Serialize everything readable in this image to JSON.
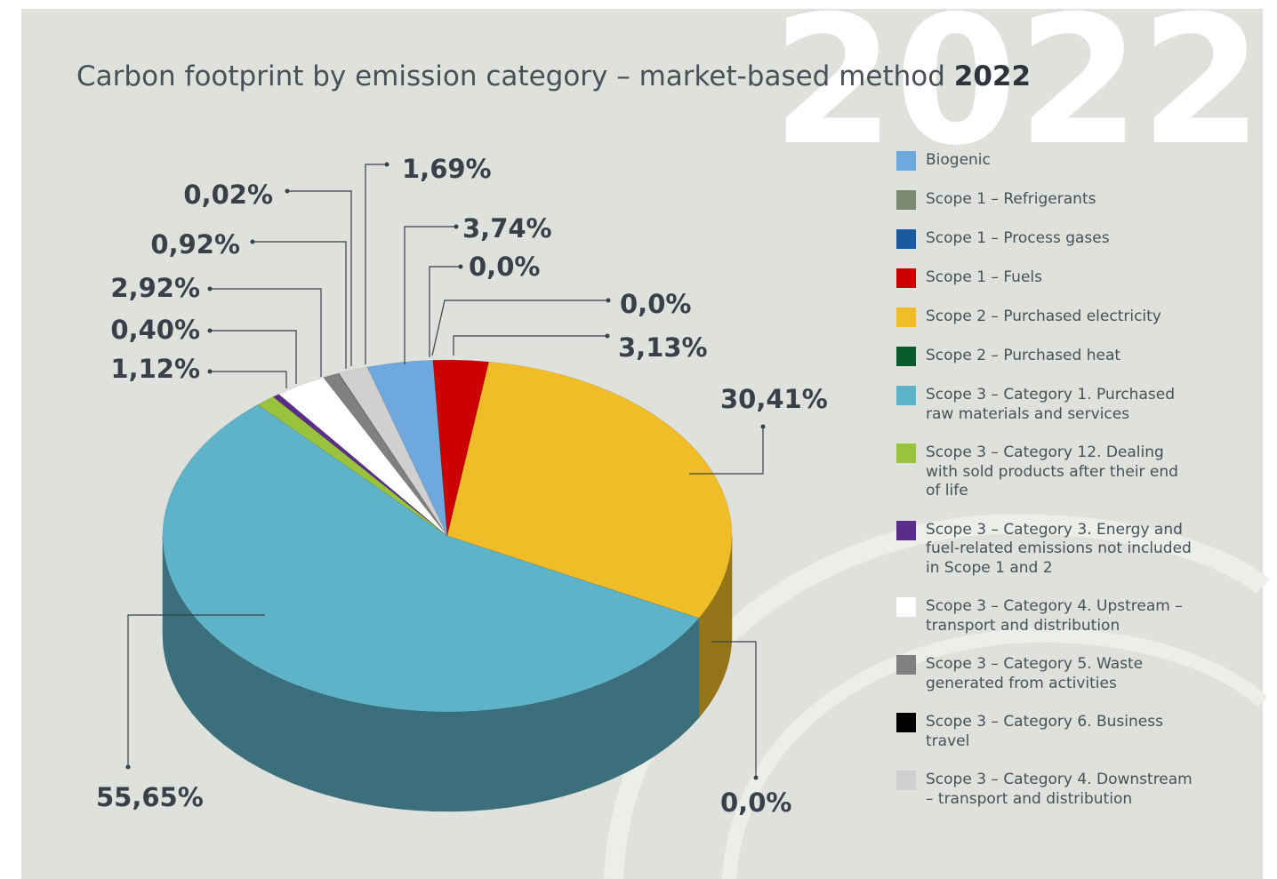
{
  "chart_data": {
    "type": "pie",
    "title": "Carbon footprint by emission category – market-based method",
    "title_year": "2022",
    "categories": [
      "Biogenic",
      "Scope 1 – Refrigerants",
      "Scope 1 – Process gases",
      "Scope 1 – Fuels",
      "Scope 2 – Purchased electricity",
      "Scope 2 – Purchased heat",
      "Scope 3 – Category 1. Purchased raw materials and services",
      "Scope 3 – Category 12. Dealing with sold products after their end of life",
      "Scope 3 – Category 3. Energy and fuel-related emissions not included in Scope 1 and 2",
      "Scope 3 – Category 4. Upstream – transport and distribution",
      "Scope 3 – Category 5. Waste generated from activities",
      "Scope 3 – Category 6. Business travel",
      "Scope 3 – Category 4. Downstream – transport and distribution"
    ],
    "values": [
      3.74,
      0.0,
      0.0,
      3.13,
      30.41,
      0.0,
      55.65,
      1.12,
      0.4,
      2.92,
      0.92,
      0.02,
      1.69
    ],
    "value_labels": [
      "3,74%",
      "0,0%",
      "0,0%",
      "3,13%",
      "30,41%",
      "0,0%",
      "55,65%",
      "1,12%",
      "0,40%",
      "2,92%",
      "0,92%",
      "0,02%",
      "1,69%"
    ],
    "colors": [
      "#6fa8dc",
      "#7b8a6e",
      "#1a5a9e",
      "#cc0000",
      "#f0bd28",
      "#0a5a2a",
      "#5fb3c8",
      "#99c33d",
      "#5b2d8a",
      "#ffffff",
      "#808080",
      "#000000",
      "#d0d0d0"
    ],
    "legend": "right"
  }
}
